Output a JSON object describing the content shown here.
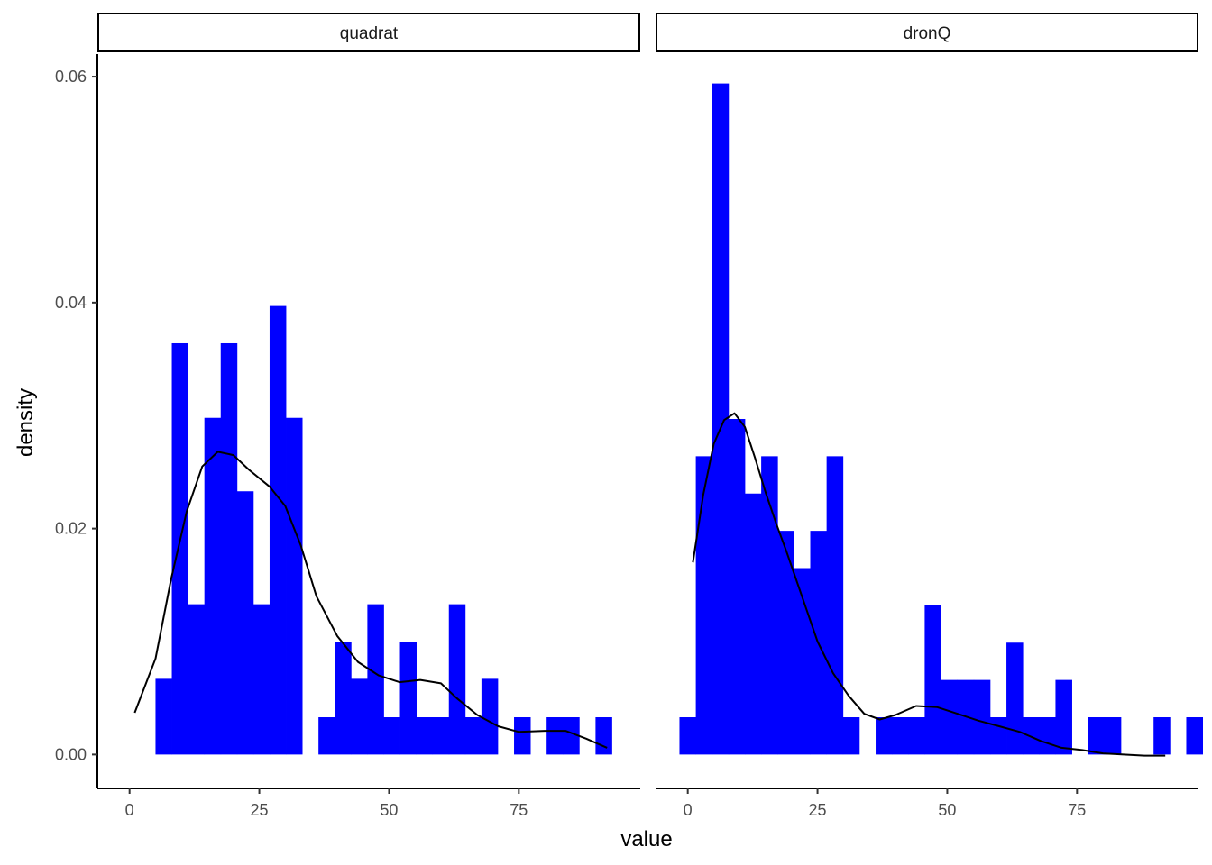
{
  "chart_data": {
    "type": "histogram",
    "xlabel": "value",
    "ylabel": "density",
    "xlim": [
      -6.2,
      98.4
    ],
    "ylim": [
      -0.003,
      0.062
    ],
    "x_ticks": [
      0,
      25,
      50,
      75
    ],
    "y_ticks": [
      0.0,
      0.02,
      0.04,
      0.06
    ],
    "y_tick_labels": [
      "0.00",
      "0.02",
      "0.04",
      "0.06"
    ],
    "x_tick_labels": [
      "0",
      "25",
      "50",
      "75"
    ],
    "bar_color": "#0000FF",
    "line_color": "#000000",
    "grid": false,
    "facets": [
      {
        "label": "quadrat",
        "bin_start": 5,
        "bin_width": 3.14,
        "densities": [
          0.0067,
          0.0364,
          0.0133,
          0.0298,
          0.0364,
          0.0233,
          0.0133,
          0.0397,
          0.0298,
          0,
          0.0033,
          0.01,
          0.0067,
          0.0133,
          0.0033,
          0.01,
          0.0033,
          0.0033,
          0.0133,
          0.0033,
          0.0067,
          0,
          0.0033,
          0,
          0.0033,
          0.0033,
          0,
          0.0033
        ],
        "density_curve": [
          [
            1,
            0.0037
          ],
          [
            5,
            0.0085
          ],
          [
            8,
            0.0155
          ],
          [
            11,
            0.0215
          ],
          [
            14,
            0.0255
          ],
          [
            17,
            0.0268
          ],
          [
            20,
            0.0265
          ],
          [
            23,
            0.0252
          ],
          [
            27,
            0.0237
          ],
          [
            30,
            0.022
          ],
          [
            33,
            0.0185
          ],
          [
            36,
            0.014
          ],
          [
            40,
            0.0105
          ],
          [
            44,
            0.0082
          ],
          [
            48,
            0.007
          ],
          [
            52,
            0.0064
          ],
          [
            56,
            0.0066
          ],
          [
            60,
            0.0063
          ],
          [
            63,
            0.005
          ],
          [
            67,
            0.0035
          ],
          [
            71,
            0.0025
          ],
          [
            75,
            0.002
          ],
          [
            80,
            0.0021
          ],
          [
            84,
            0.0021
          ],
          [
            88,
            0.0014
          ],
          [
            92,
            0.0006
          ]
        ]
      },
      {
        "label": "dronQ",
        "bin_start": -1.6,
        "bin_width": 3.15,
        "densities": [
          0.0033,
          0.0264,
          0.0594,
          0.0297,
          0.0231,
          0.0264,
          0.0198,
          0.0165,
          0.0198,
          0.0264,
          0.0033,
          0,
          0.0033,
          0.0033,
          0.0033,
          0.0132,
          0.0066,
          0.0066,
          0.0066,
          0.0033,
          0.0099,
          0.0033,
          0.0033,
          0.0066,
          0,
          0.0033,
          0.0033,
          0,
          0,
          0.0033,
          0,
          0.0033
        ],
        "density_curve": [
          [
            1,
            0.017
          ],
          [
            3,
            0.023
          ],
          [
            5,
            0.0275
          ],
          [
            7,
            0.0296
          ],
          [
            9,
            0.0302
          ],
          [
            11,
            0.029
          ],
          [
            13,
            0.0262
          ],
          [
            15,
            0.0232
          ],
          [
            17,
            0.0205
          ],
          [
            19,
            0.018
          ],
          [
            22,
            0.014
          ],
          [
            25,
            0.01
          ],
          [
            28,
            0.0072
          ],
          [
            31,
            0.0052
          ],
          [
            34,
            0.0036
          ],
          [
            37,
            0.0031
          ],
          [
            40,
            0.0035
          ],
          [
            44,
            0.0043
          ],
          [
            48,
            0.0042
          ],
          [
            52,
            0.0036
          ],
          [
            56,
            0.003
          ],
          [
            60,
            0.0025
          ],
          [
            64,
            0.002
          ],
          [
            68,
            0.0012
          ],
          [
            72,
            0.0006
          ],
          [
            76,
            0.0004
          ],
          [
            80,
            0.0001
          ],
          [
            84,
            0.0
          ],
          [
            88,
            -0.0001
          ],
          [
            92,
            -0.0001
          ]
        ]
      }
    ]
  }
}
